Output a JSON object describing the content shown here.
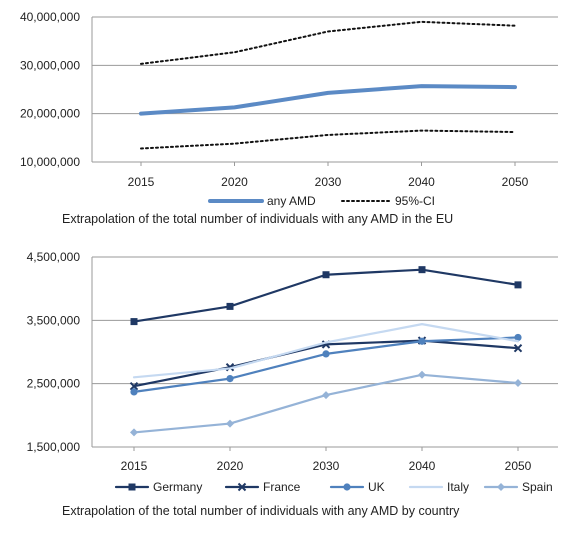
{
  "chart_data": [
    {
      "type": "line",
      "title": "",
      "caption": "Extrapolation of the total number of individuals with any AMD in the EU",
      "xlabel": "",
      "ylabel": "",
      "x": [
        "2015",
        "2020",
        "2030",
        "2040",
        "2050"
      ],
      "y_ticks": [
        "10,000,000",
        "20,000,000",
        "30,000,000",
        "40,000,000"
      ],
      "ylim": [
        10000000,
        40000000
      ],
      "grid": "horizontal",
      "legend_position": "bottom",
      "series": [
        {
          "name": "any AMD",
          "values": [
            20000000,
            21300000,
            24300000,
            25700000,
            25500000
          ],
          "color": "#5b8ac5",
          "style": "solid-thick"
        },
        {
          "name": "95%-CI",
          "values": [
            30300000,
            32700000,
            37000000,
            39000000,
            38200000
          ],
          "color": "#111111",
          "style": "dotted",
          "legend": true
        },
        {
          "name": "95%-CI",
          "values": [
            12800000,
            13800000,
            15600000,
            16500000,
            16200000
          ],
          "color": "#111111",
          "style": "dotted",
          "legend": false
        }
      ]
    },
    {
      "type": "line",
      "title": "",
      "caption": "Extrapolation of the total number of individuals with any AMD by country",
      "xlabel": "",
      "ylabel": "",
      "x": [
        "2015",
        "2020",
        "2030",
        "2040",
        "2050"
      ],
      "y_ticks": [
        "1,500,000",
        "2,500,000",
        "3,500,000",
        "4,500,000"
      ],
      "ylim": [
        1500000,
        4500000
      ],
      "grid": "horizontal",
      "legend_position": "bottom",
      "series": [
        {
          "name": "Germany",
          "values": [
            3480000,
            3720000,
            4220000,
            4300000,
            4060000
          ],
          "color": "#1f3864",
          "marker": "square"
        },
        {
          "name": "France",
          "values": [
            2460000,
            2760000,
            3120000,
            3180000,
            3060000
          ],
          "color": "#1f3864",
          "marker": "x"
        },
        {
          "name": "UK",
          "values": [
            2370000,
            2580000,
            2970000,
            3170000,
            3230000
          ],
          "color": "#4f81bd",
          "marker": "circle"
        },
        {
          "name": "Italy",
          "values": [
            2600000,
            2740000,
            3150000,
            3440000,
            3170000
          ],
          "color": "#c5d9f1",
          "marker": "none"
        },
        {
          "name": "Spain",
          "values": [
            1730000,
            1870000,
            2320000,
            2640000,
            2510000
          ],
          "color": "#95b3d7",
          "marker": "diamond"
        }
      ]
    }
  ]
}
